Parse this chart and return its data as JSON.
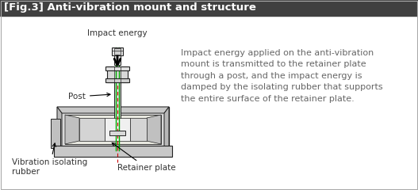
{
  "title": "[Fig.3] Anti-vibration mount and structure",
  "title_bg": "#404040",
  "title_color": "#ffffff",
  "title_fontsize": 9.5,
  "body_bg": "#ffffff",
  "description": "Impact energy applied on the anti-vibration\nmount is transmitted to the retainer plate\nthrough a post, and the impact energy is\ndamped by the isolating rubber that supports\nthe entire surface of the retainer plate.",
  "desc_fontsize": 8.0,
  "desc_color": "#666666",
  "label_impact": "Impact energy",
  "label_post": "Post",
  "label_vibration": "Vibration isolating\nrubber",
  "label_retainer": "Retainer plate",
  "label_fontsize": 7.5,
  "label_color": "#333333",
  "border_color": "#aaaaaa",
  "line_color": "#222222",
  "green_color": "#00aa00",
  "red_color": "#cc0000"
}
